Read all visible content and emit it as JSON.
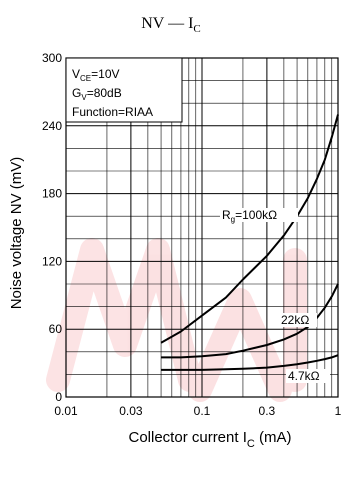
{
  "chart_data": {
    "type": "line",
    "title": {
      "main": "NV — I",
      "sub": "C"
    },
    "xlabel": {
      "main": "Collector current   I",
      "sub": "C",
      "unit": "  (mA)"
    },
    "ylabel": "Noise voltage  NV   (mV)",
    "x_scale": "log",
    "xlim": [
      0.01,
      1
    ],
    "ylim": [
      0,
      300
    ],
    "x_ticks": [
      {
        "value": 0.01,
        "label": "0.01"
      },
      {
        "value": 0.03,
        "label": "0.03"
      },
      {
        "value": 0.1,
        "label": "0.1"
      },
      {
        "value": 0.3,
        "label": "0.3"
      },
      {
        "value": 1,
        "label": "1"
      }
    ],
    "y_ticks": [
      {
        "value": 0,
        "label": "0"
      },
      {
        "value": 60,
        "label": "60"
      },
      {
        "value": 120,
        "label": "120"
      },
      {
        "value": 180,
        "label": "180"
      },
      {
        "value": 240,
        "label": "240"
      },
      {
        "value": 300,
        "label": "300"
      }
    ],
    "x_grid": [
      0.01,
      0.02,
      0.03,
      0.04,
      0.05,
      0.06,
      0.07,
      0.08,
      0.09,
      0.1,
      0.2,
      0.3,
      0.4,
      0.5,
      0.6,
      0.7,
      0.8,
      0.9,
      1
    ],
    "y_grid_step": 20,
    "grid": true,
    "conditions": [
      {
        "main": "V",
        "sub": "CE",
        "rest": "=10V"
      },
      {
        "main": "G",
        "sub": "V",
        "rest": "=80dB"
      },
      {
        "main": "Function=RIAA",
        "sub": "",
        "rest": ""
      }
    ],
    "series": [
      {
        "name": {
          "main": "R",
          "sub": "g",
          "rest": "=100kΩ"
        },
        "x": [
          0.05,
          0.07,
          0.1,
          0.15,
          0.2,
          0.3,
          0.4,
          0.5,
          0.6,
          0.7,
          0.8,
          0.9,
          1.0
        ],
        "y": [
          48,
          58,
          72,
          88,
          104,
          125,
          143,
          160,
          176,
          193,
          210,
          230,
          250
        ]
      },
      {
        "name": {
          "main": "22kΩ",
          "sub": "",
          "rest": ""
        },
        "x": [
          0.05,
          0.07,
          0.1,
          0.15,
          0.2,
          0.3,
          0.4,
          0.5,
          0.6,
          0.7,
          0.8,
          0.9,
          1.0
        ],
        "y": [
          35,
          35,
          36,
          38,
          41,
          46,
          51,
          56,
          62,
          70,
          79,
          89,
          100
        ]
      },
      {
        "name": {
          "main": "4.7kΩ",
          "sub": "",
          "rest": ""
        },
        "x": [
          0.05,
          0.07,
          0.1,
          0.15,
          0.2,
          0.3,
          0.4,
          0.5,
          0.6,
          0.7,
          0.8,
          0.9,
          1.0
        ],
        "y": [
          24,
          24,
          24,
          24.5,
          25,
          26,
          27.5,
          29,
          30.5,
          32,
          33.5,
          35,
          37
        ]
      }
    ]
  }
}
